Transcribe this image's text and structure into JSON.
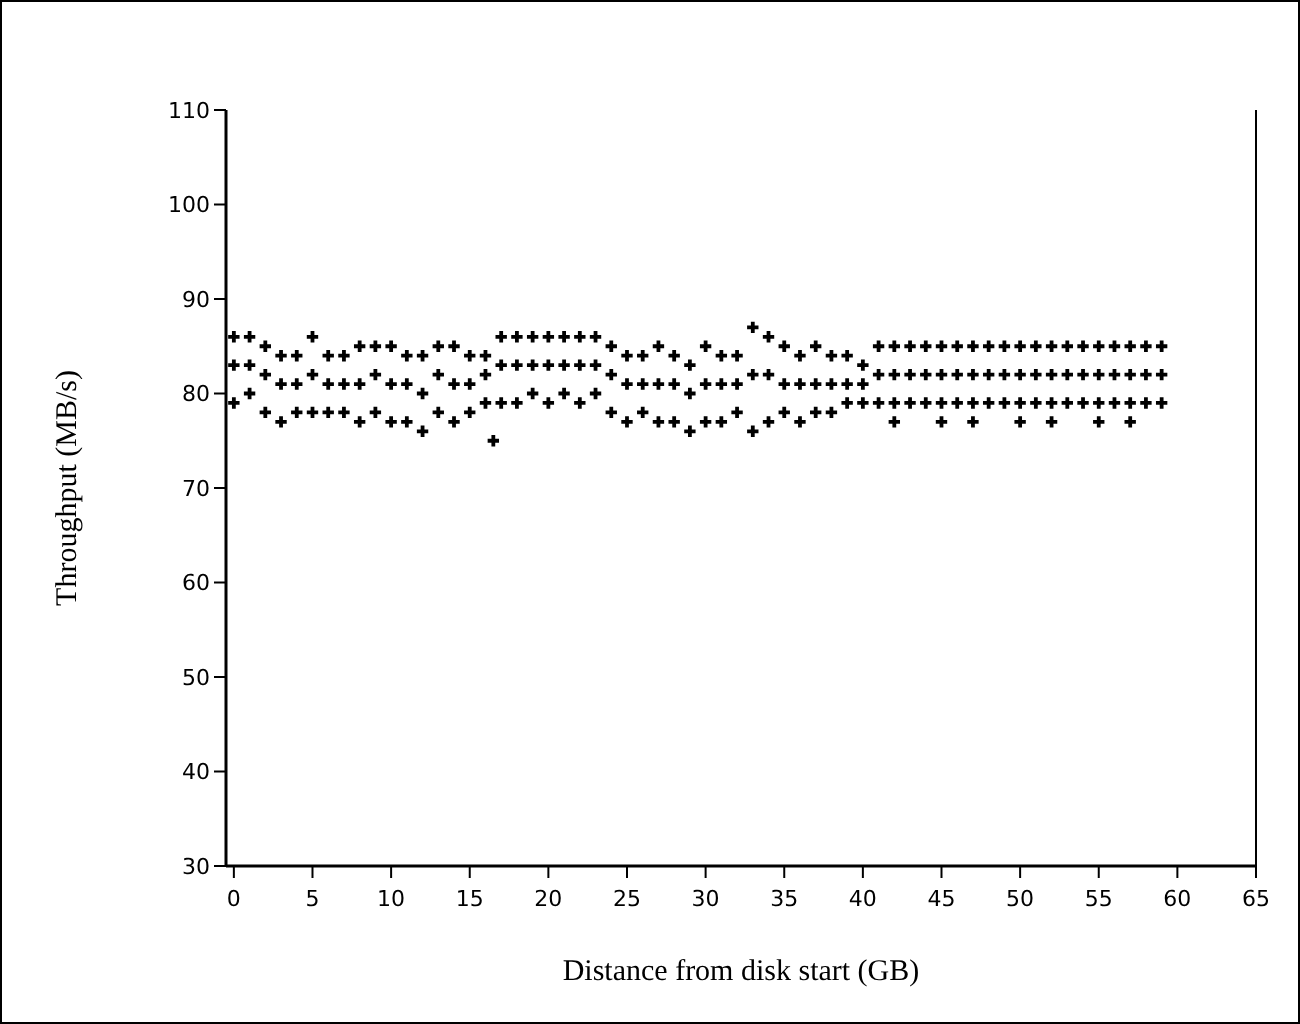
{
  "chart_data": {
    "type": "scatter",
    "xlabel": "Distance from disk start (GB)",
    "ylabel": "Throughput (MB/s)",
    "xlim": [
      -0.5,
      65
    ],
    "ylim": [
      30,
      110
    ],
    "xticks": [
      0,
      5,
      10,
      15,
      20,
      25,
      30,
      35,
      40,
      45,
      50,
      55,
      60,
      65
    ],
    "yticks": [
      30,
      40,
      50,
      60,
      70,
      80,
      90,
      100,
      110
    ],
    "marker": "cross",
    "series": [
      {
        "color": "#000000",
        "x": [
          0,
          0,
          0,
          1,
          1,
          1,
          2,
          2,
          2,
          3,
          3,
          3,
          4,
          4,
          4,
          5,
          5,
          5,
          6,
          6,
          6,
          7,
          7,
          7,
          8,
          8,
          8,
          9,
          9,
          9,
          10,
          10,
          10,
          11,
          11,
          11,
          12,
          12,
          12,
          13,
          13,
          13,
          14,
          14,
          14,
          15,
          15,
          15,
          16,
          16,
          16,
          16.5,
          17,
          17,
          17,
          18,
          18,
          18,
          19,
          19,
          19,
          20,
          20,
          20,
          21,
          21,
          21,
          22,
          22,
          22,
          23,
          23,
          23,
          24,
          24,
          24,
          25,
          25,
          25,
          26,
          26,
          26,
          27,
          27,
          27,
          28,
          28,
          28,
          29,
          29,
          29,
          30,
          30,
          30,
          31,
          31,
          31,
          32,
          32,
          32,
          33,
          33,
          33,
          34,
          34,
          34,
          35,
          35,
          35,
          36,
          36,
          36,
          37,
          37,
          37,
          38,
          38,
          38,
          39,
          39,
          39,
          40,
          40,
          40,
          41,
          41,
          41,
          42,
          42,
          42,
          42,
          43,
          43,
          43,
          44,
          44,
          44,
          45,
          45,
          45,
          45,
          46,
          46,
          46,
          47,
          47,
          47,
          47,
          48,
          48,
          48,
          49,
          49,
          49,
          50,
          50,
          50,
          50,
          51,
          51,
          51,
          52,
          52,
          52,
          52,
          53,
          53,
          53,
          54,
          54,
          54,
          55,
          55,
          55,
          55,
          56,
          56,
          56,
          57,
          57,
          57,
          57,
          58,
          58,
          58,
          59,
          59,
          59
        ],
        "values": [
          79,
          83,
          86,
          80,
          83,
          86,
          78,
          82,
          85,
          77,
          81,
          84,
          78,
          81,
          84,
          78,
          82,
          86,
          78,
          81,
          84,
          78,
          81,
          84,
          77,
          81,
          85,
          78,
          82,
          85,
          77,
          81,
          85,
          77,
          81,
          84,
          76,
          80,
          84,
          78,
          82,
          85,
          77,
          81,
          85,
          78,
          81,
          84,
          79,
          82,
          84,
          75,
          79,
          83,
          86,
          79,
          83,
          86,
          80,
          83,
          86,
          79,
          83,
          86,
          80,
          83,
          86,
          79,
          83,
          86,
          80,
          83,
          86,
          78,
          82,
          85,
          77,
          81,
          84,
          78,
          81,
          84,
          77,
          81,
          85,
          77,
          81,
          84,
          76,
          80,
          83,
          77,
          81,
          85,
          77,
          81,
          84,
          78,
          81,
          84,
          76,
          82,
          87,
          77,
          82,
          86,
          78,
          81,
          85,
          77,
          81,
          84,
          78,
          81,
          85,
          78,
          81,
          84,
          79,
          81,
          84,
          79,
          81,
          83,
          79,
          82,
          85,
          79,
          82,
          85,
          77,
          79,
          82,
          85,
          79,
          82,
          85,
          79,
          82,
          85,
          77,
          79,
          82,
          85,
          79,
          82,
          85,
          77,
          79,
          82,
          85,
          79,
          82,
          85,
          79,
          82,
          85,
          77,
          79,
          82,
          85,
          79,
          82,
          85,
          77,
          79,
          82,
          85,
          79,
          82,
          85,
          79,
          82,
          85,
          77,
          79,
          82,
          85,
          79,
          82,
          85,
          77,
          79,
          82,
          85,
          79,
          82,
          85
        ]
      }
    ]
  }
}
